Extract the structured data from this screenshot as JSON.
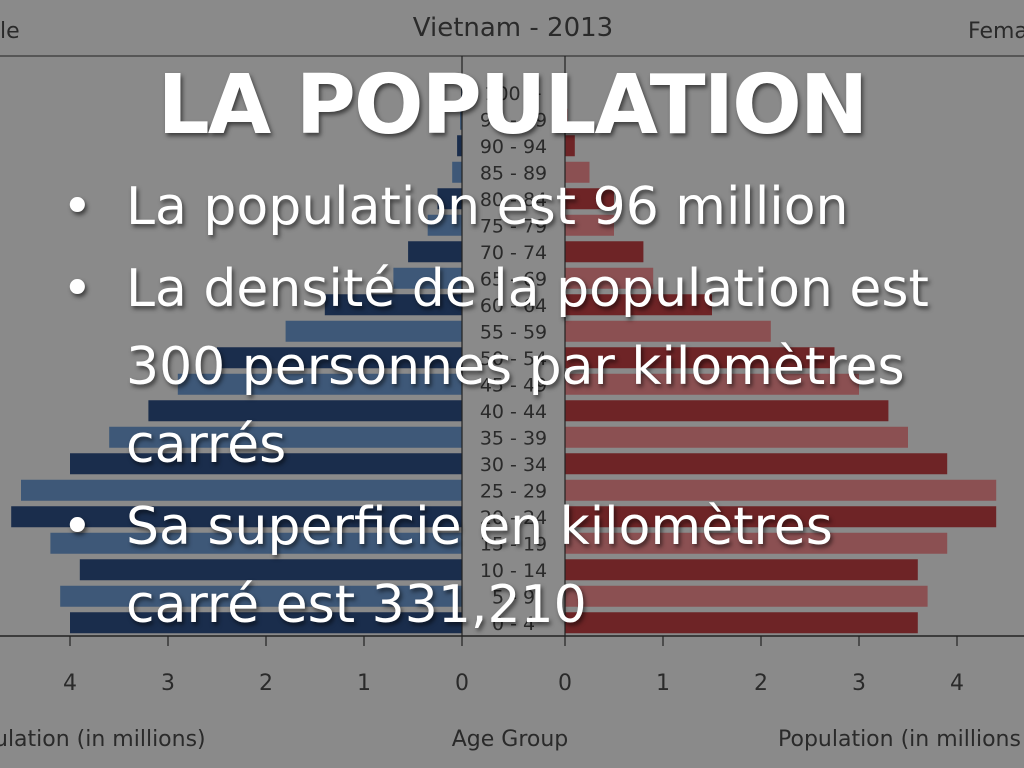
{
  "slide": {
    "title": "LA POPULATION",
    "bullets": [
      "La population est 96 million",
      "La densité de la population est 300 personnes par kilomètres carrés",
      "Sa superficie en kilomètres carré est 331,210"
    ],
    "bullet_symbol": "•"
  },
  "chart_data": {
    "type": "bar",
    "title": "Vietnam - 2013",
    "xlabel_left": "ulation (in millions)",
    "xlabel_center": "Age Group",
    "xlabel_right": "Population (in millions",
    "legend_left": "le",
    "legend_right": "Fema",
    "categories": [
      "0 - 4",
      "5 - 9",
      "10 - 14",
      "15 - 19",
      "20 - 24",
      "25 - 29",
      "30 - 34",
      "35 - 39",
      "40 - 44",
      "45 - 49",
      "50 - 54",
      "55 - 59",
      "60 - 64",
      "65 - 69",
      "70 - 74",
      "75 - 79",
      "80 - 84",
      "85 - 89",
      "90 - 94",
      "95 - 99",
      "100 +"
    ],
    "series": [
      {
        "name": "Male",
        "values": [
          4.0,
          4.1,
          3.9,
          4.2,
          4.6,
          4.5,
          4.0,
          3.6,
          3.2,
          2.9,
          2.5,
          1.8,
          1.4,
          0.7,
          0.55,
          0.35,
          0.25,
          0.1,
          0.05,
          0.02,
          0.01
        ]
      },
      {
        "name": "Female",
        "values": [
          3.6,
          3.7,
          3.6,
          3.9,
          4.4,
          4.4,
          3.9,
          3.5,
          3.3,
          3.0,
          2.75,
          2.1,
          1.5,
          0.9,
          0.8,
          0.5,
          0.5,
          0.25,
          0.1,
          0.03,
          0.01
        ]
      }
    ],
    "xlim": [
      0,
      4.5
    ],
    "ticks": [
      "0",
      "1",
      "2",
      "3",
      "4"
    ],
    "colors": {
      "male_dark": "#1a2d4c",
      "male_light": "#3e5878",
      "female_dark": "#6e2426",
      "female_light": "#8b5052",
      "axis": "#222222"
    }
  }
}
